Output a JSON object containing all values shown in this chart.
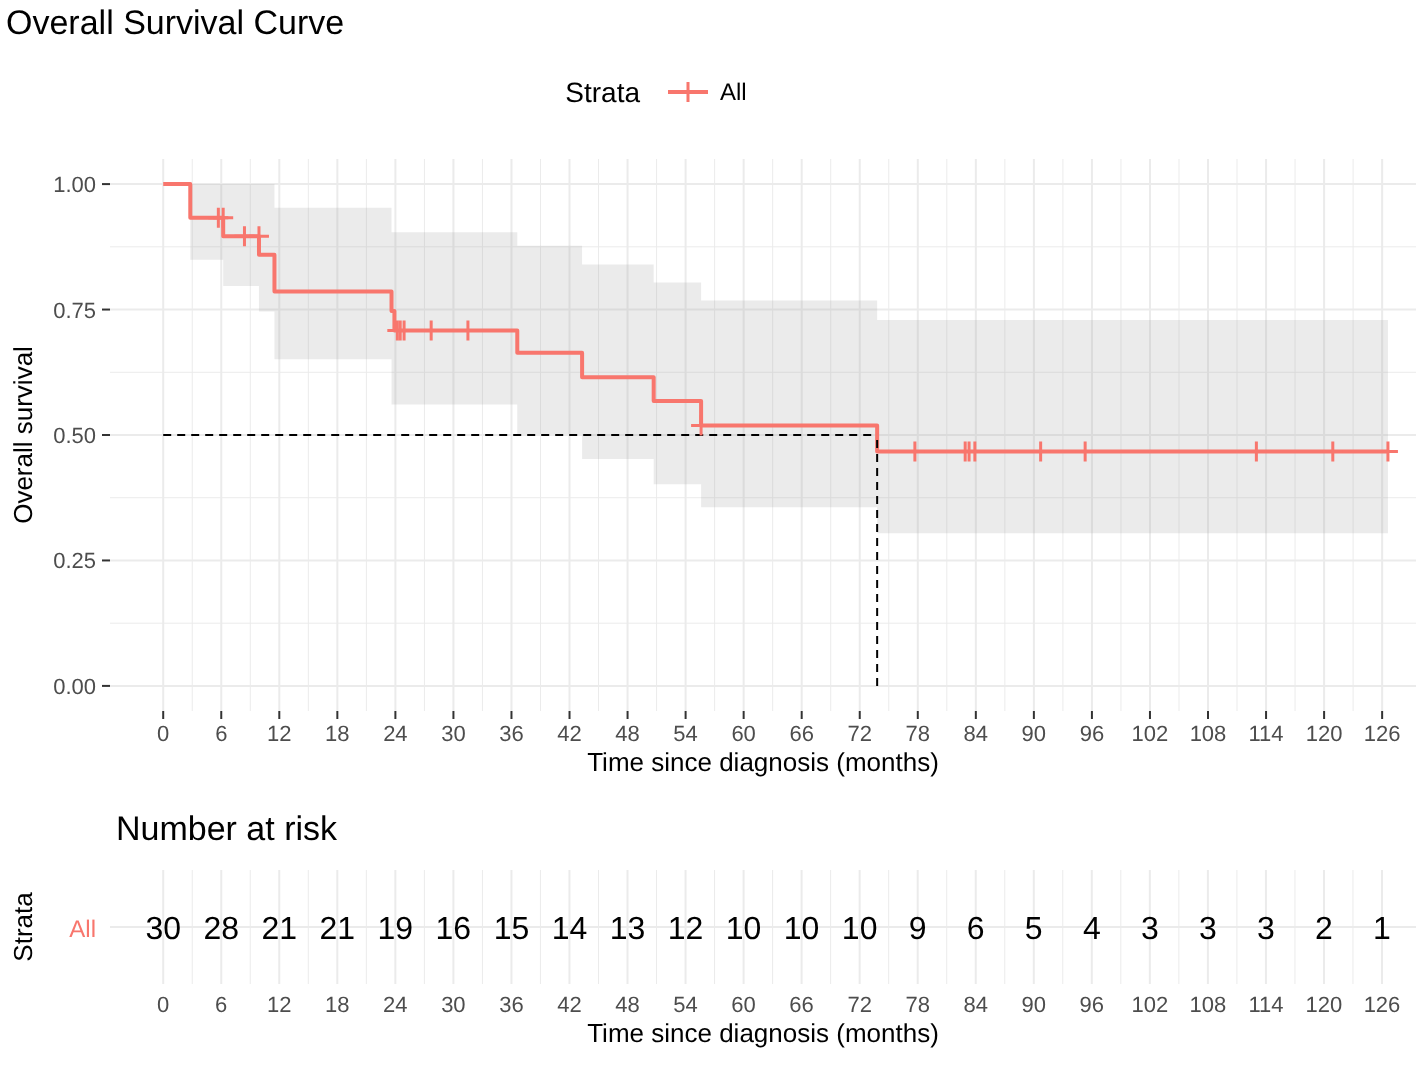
{
  "chart_data": [
    {
      "type": "step",
      "title": "Overall Survival Curve",
      "xlabel": "Time since diagnosis (months)",
      "ylabel": "Overall survival",
      "legend_title": "Strata",
      "legend": "top",
      "grid": true,
      "xlim": [
        -5.5,
        129.5
      ],
      "xticks": [
        0,
        6,
        12,
        18,
        24,
        30,
        36,
        42,
        48,
        54,
        60,
        66,
        72,
        78,
        84,
        90,
        96,
        102,
        108,
        114,
        120,
        126
      ],
      "ylim": [
        -0.05,
        1.05
      ],
      "yticks": [
        {
          "value": 0,
          "label": "0.00"
        },
        {
          "value": 0.25,
          "label": "0.25"
        },
        {
          "value": 0.5,
          "label": "0.50"
        },
        {
          "value": 0.75,
          "label": "0.75"
        },
        {
          "value": 1,
          "label": "1.00"
        }
      ],
      "ref_lines": [
        {
          "axis": "y",
          "value": 0.5,
          "color": "#000000",
          "line_style": "dashed"
        },
        {
          "axis": "x",
          "value": 73.8,
          "color": "#000000",
          "line_style": "dashed"
        }
      ],
      "series": [
        {
          "name": "All",
          "type": "step",
          "color": "#f8766d",
          "marker": "none",
          "x": [
            0,
            2.8,
            6.2,
            9.9,
            11.5,
            23.6,
            23.9,
            36.6,
            43.3,
            50.7,
            55.6,
            73.8,
            126.6
          ],
          "values": [
            1,
            0.933,
            0.896,
            0.859,
            0.786,
            0.747,
            0.708,
            0.664,
            0.615,
            0.568,
            0.519,
            0.467,
            0.467
          ],
          "lower": [
            1,
            0.849,
            0.797,
            0.746,
            0.651,
            0.561,
            0.561,
            0.502,
            0.452,
            0.402,
            0.356,
            0.304,
            0.304
          ],
          "upper": [
            1,
            1,
            1,
            1,
            0.953,
            0.904,
            0.904,
            0.877,
            0.84,
            0.804,
            0.768,
            0.729,
            0.729
          ]
        },
        {
          "type": "scatter",
          "color": "#f8766d",
          "marker": "cross",
          "x": [
            5.7,
            6.2,
            8.4,
            9.9,
            24.2,
            24.5,
            24.9,
            27.7,
            31.5,
            55.6,
            77.7,
            82.9,
            83.3,
            83.9,
            90.7,
            95.3,
            113,
            120.9,
            126.6
          ],
          "values": [
            0.933,
            0.933,
            0.896,
            0.896,
            0.708,
            0.708,
            0.708,
            0.708,
            0.708,
            0.519,
            0.467,
            0.467,
            0.467,
            0.467,
            0.467,
            0.467,
            0.467,
            0.467,
            0.467
          ]
        }
      ]
    },
    {
      "type": "heatmap",
      "title": "Number at risk",
      "xlabel": "Time since diagnosis (months)",
      "ylabel": "Strata",
      "grid": true,
      "data_labels": true,
      "categories": [
        "0",
        "6",
        "12",
        "18",
        "24",
        "30",
        "36",
        "42",
        "48",
        "54",
        "60",
        "66",
        "72",
        "78",
        "84",
        "90",
        "96",
        "102",
        "108",
        "114",
        "120",
        "126"
      ],
      "y_categories": [
        "All"
      ],
      "cells": [
        [
          30,
          28,
          21,
          21,
          19,
          16,
          15,
          14,
          13,
          12,
          10,
          10,
          10,
          9,
          6,
          5,
          4,
          3,
          3,
          3,
          2,
          1
        ]
      ]
    }
  ]
}
